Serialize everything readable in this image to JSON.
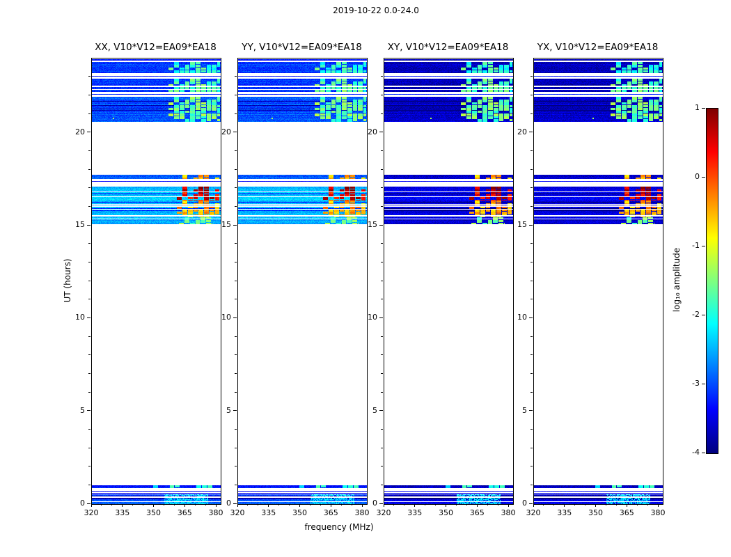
{
  "chart_data": {
    "type": "heatmap",
    "title": "2019-10-22 0.0-24.0",
    "xlabel": "frequency (MHz)",
    "ylabel": "UT (hours)",
    "xlim": [
      320,
      382
    ],
    "ylim": [
      0,
      24
    ],
    "cmap": "jet",
    "grid": false,
    "xtick_labels": [
      "320",
      "335",
      "350",
      "365",
      "380"
    ],
    "xtick_values": [
      320,
      335,
      350,
      365,
      380
    ],
    "ytick_labels": [
      "0",
      "5",
      "10",
      "15",
      "20"
    ],
    "ytick_values": [
      0,
      5,
      10,
      15,
      20
    ],
    "colorbar": {
      "label": "log₁₀ amplitude",
      "tick_labels": [
        "1",
        "0",
        "-1",
        "-2",
        "-3",
        "-4"
      ],
      "tick_values": [
        1,
        0,
        -1,
        -2,
        -3,
        -4
      ],
      "vmin": -4,
      "vmax": 1,
      "position": "right"
    },
    "panels": [
      {
        "pol": "XX",
        "label": "XX, V10*V12=EA09*EA18"
      },
      {
        "pol": "YY",
        "label": "YY, V10*V12=EA09*EA18"
      },
      {
        "pol": "XY",
        "label": "XY, V10*V12=EA09*EA18"
      },
      {
        "pol": "YX",
        "label": "YX, V10*V12=EA09*EA18"
      }
    ],
    "bands": [
      {
        "t0": 23.88,
        "t1": 23.97,
        "bg": [
          -3.4,
          -3.8
        ]
      },
      {
        "t0": 23.2,
        "t1": 23.8,
        "bg": [
          -3.1,
          -3.7
        ],
        "stripe_white": 0.08,
        "rfi": {
          "f0": 357,
          "f1": 381.5,
          "level": -1.9,
          "blocky": true
        }
      },
      {
        "t0": 22.2,
        "t1": 22.9,
        "bg": [
          -3.1,
          -3.7
        ],
        "stripe_white": 0.1,
        "rfi": {
          "f0": 357,
          "f1": 381.5,
          "level": -1.7,
          "blocky": true
        }
      },
      {
        "t0": 20.6,
        "t1": 21.95,
        "bg": [
          -3.0,
          -3.65
        ],
        "stripe_white": 0.1,
        "stripe_dark": 0.12,
        "rfi": {
          "f0": 357,
          "f1": 381.5,
          "level": -1.6,
          "blocky": true
        },
        "speck": {
          "t": 20.8,
          "f": 330,
          "level": -1.3
        }
      },
      {
        "t0": 17.5,
        "t1": 17.72,
        "bg": [
          -2.9,
          -3.6
        ],
        "rfi": {
          "f0": 361,
          "f1": 381.5,
          "level": -0.5,
          "blocky": true
        }
      },
      {
        "t0": 16.82,
        "t1": 17.1,
        "bg": [
          -2.45,
          -3.5
        ],
        "stripe_white": 0.12,
        "stripe_dark": 0.1,
        "rfi": {
          "f0": 361,
          "f1": 381.5,
          "level": 0.75,
          "blocky": true
        }
      },
      {
        "t0": 16.35,
        "t1": 16.82,
        "bg": [
          -2.45,
          -3.5
        ],
        "stripe_white": 0.12,
        "stripe_dark": 0.1,
        "rfi": {
          "f0": 361,
          "f1": 381.5,
          "level": 0.45,
          "blocky": true
        }
      },
      {
        "t0": 15.45,
        "t1": 16.35,
        "bg": [
          -2.45,
          -3.5
        ],
        "stripe_white": 0.18,
        "stripe_dark": 0.12,
        "rfi": {
          "f0": 361,
          "f1": 381.5,
          "level": -0.5,
          "blocky": true
        }
      },
      {
        "t0": 15.08,
        "t1": 15.45,
        "bg": [
          -2.5,
          -3.55
        ],
        "stripe_white": 0.15,
        "stripe_dark": 0.12,
        "rfi": {
          "f0": 362,
          "f1": 378,
          "level": -1.6,
          "blocky": true
        }
      },
      {
        "t0": 0.85,
        "t1": 1.0,
        "bg": [
          -3.3,
          -3.7
        ],
        "rfi": {
          "f0": 347,
          "f1": 381.5,
          "level": -2.0,
          "blocky": true
        }
      },
      {
        "t0": 0.0,
        "t1": 0.52,
        "bg": [
          -3.0,
          -3.55
        ],
        "stripe_white": 0.12,
        "stripe_dark": 0.12,
        "rfi": {
          "f0": 355,
          "f1": 376,
          "level": -2.3,
          "blocky": false
        }
      }
    ],
    "lines": [
      {
        "t": 23.05,
        "level": -3.3
      },
      {
        "t": 22.07,
        "level": -3.2
      },
      {
        "t": 17.4,
        "level": -3.4
      },
      {
        "t": 0.72,
        "level": -3.4
      },
      {
        "t": 0.6,
        "level": -3.5
      }
    ]
  }
}
